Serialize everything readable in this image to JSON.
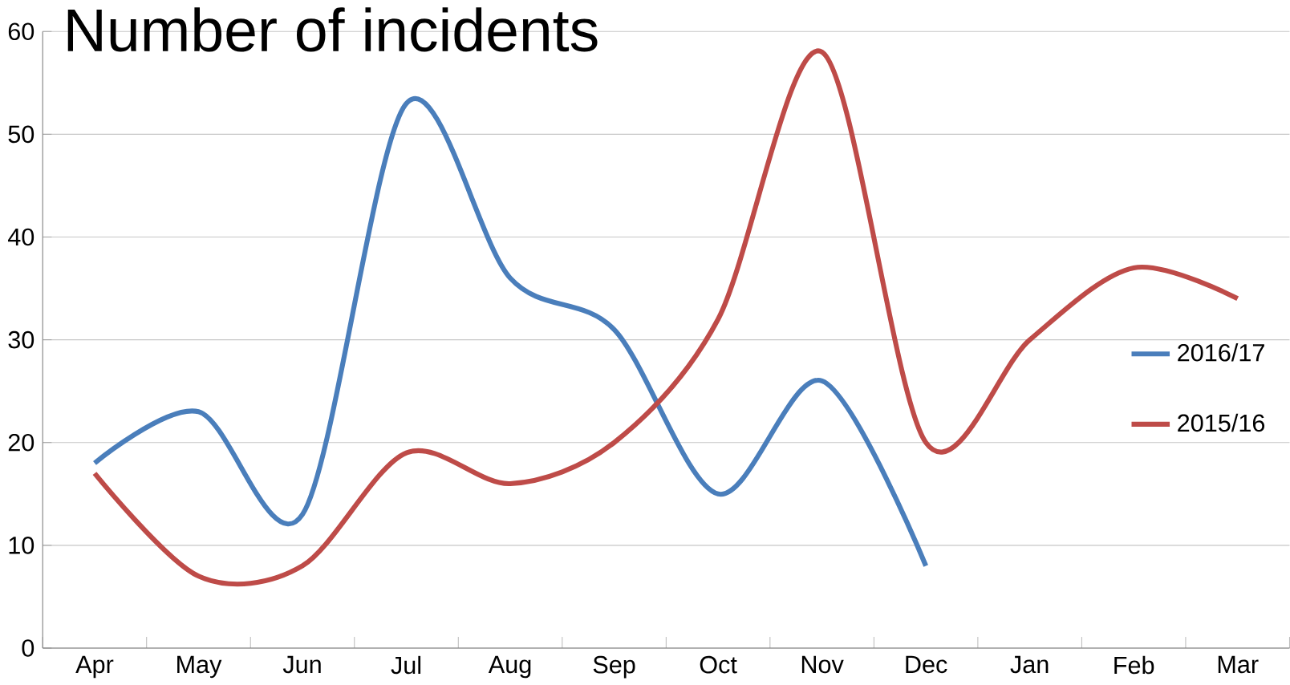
{
  "chart_data": {
    "type": "line",
    "title": "Number of incidents",
    "categories": [
      "Apr",
      "May",
      "Jun",
      "Jul",
      "Aug",
      "Sep",
      "Oct",
      "Nov",
      "Dec",
      "Jan",
      "Feb",
      "Mar"
    ],
    "series": [
      {
        "name": "2016/17",
        "color": "#4a7ebb",
        "values": [
          18,
          23,
          13,
          53,
          36,
          31,
          15,
          26,
          8,
          null,
          null,
          null
        ]
      },
      {
        "name": "2015/16",
        "color": "#be4b48",
        "values": [
          17,
          7,
          8,
          19,
          16,
          20,
          32,
          58,
          20,
          30,
          37,
          34
        ]
      }
    ],
    "ylim": [
      0,
      60
    ],
    "yticks": [
      0,
      10,
      20,
      30,
      40,
      50,
      60
    ],
    "grid": "y",
    "legend": "right",
    "marker": "none",
    "line_style": "solid"
  }
}
